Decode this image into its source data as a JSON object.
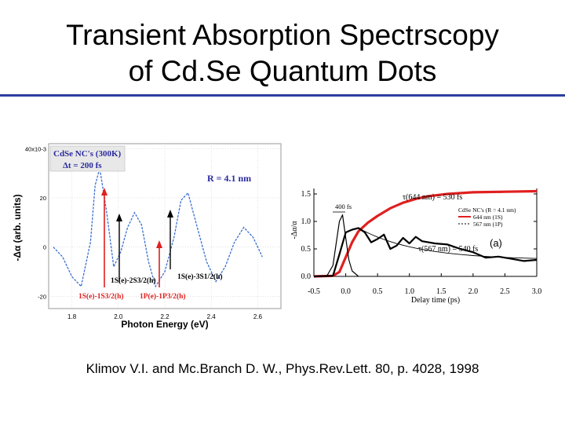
{
  "slide": {
    "title_line1": "Transient Absorption Spectrscopy",
    "title_line2": "of Cd.Se Quantum Dots",
    "citation": "Klimov V.I. and Mc.Branch D. W., Phys.Rev.Lett. 80, p. 4028, 1998",
    "colors": {
      "rule": "#2d3fa0",
      "blue_curve": "#3b6fd0",
      "red": "#e02020",
      "box_text": "#2a2aa0"
    }
  },
  "chart_data": [
    {
      "type": "line",
      "title": "",
      "box_lines": [
        "CdSe NC's (300K)",
        "Δt = 200 fs"
      ],
      "annotation": "R = 4.1 nm",
      "xlabel": "Photon Energy (eV)",
      "ylabel": "-Δα (arb. units)",
      "xlim": [
        1.7,
        2.7
      ],
      "ylim": [
        -25,
        42
      ],
      "x_ticks": [
        "1.8",
        "2.0",
        "2.2",
        "2.4",
        "2.6"
      ],
      "y_ticks": [
        "40x10-3",
        "20",
        "0",
        "-20"
      ],
      "transition_labels": [
        "1S(e)-2S3/2(h)",
        "1S(e)-3S1/2(h)",
        "1S(e)-1S3/2(h)",
        "1P(e)-1P3/2(h)"
      ],
      "series": [
        {
          "x": [
            1.72,
            1.76,
            1.8,
            1.84,
            1.88,
            1.9,
            1.92,
            1.95,
            1.98,
            2.01,
            2.04,
            2.07,
            2.1,
            2.13,
            2.16,
            2.2,
            2.24,
            2.27,
            2.3,
            2.34,
            2.38,
            2.42,
            2.46,
            2.5,
            2.54,
            2.58,
            2.62
          ],
          "y": [
            0,
            -4,
            -12,
            -16,
            2,
            25,
            32,
            14,
            -8,
            -2,
            8,
            14,
            9,
            -6,
            -16,
            -10,
            4,
            19,
            22,
            8,
            -6,
            -14,
            -8,
            2,
            8,
            4,
            -4
          ]
        }
      ]
    },
    {
      "type": "line",
      "title": "",
      "xlabel": "Delay time (ps)",
      "ylabel": "-Δα/α",
      "xlim": [
        -0.5,
        3.0
      ],
      "ylim": [
        0.0,
        1.6
      ],
      "x_ticks": [
        "-0.5",
        "0.0",
        "0.5",
        "1.0",
        "1.5",
        "2.0",
        "2.5",
        "3.0"
      ],
      "y_ticks": [
        "0.0",
        "0.5",
        "1.0",
        "1.5"
      ],
      "annotations": [
        "τ(644 nm) = 530 fs",
        "τ(567 nm) = 540 fs",
        "400 fs",
        "(a)"
      ],
      "legend_title": "CdSe NC's (R = 4.1 nm)",
      "legend": [
        "644 nm (1S)",
        "567 nm (1P)"
      ],
      "series": [
        {
          "name": "644 nm (1S)",
          "color": "#e02020",
          "x": [
            -0.5,
            -0.2,
            -0.1,
            0.0,
            0.1,
            0.2,
            0.35,
            0.5,
            0.7,
            0.9,
            1.1,
            1.3,
            1.6,
            2.0,
            2.5,
            3.0
          ],
          "y": [
            0.0,
            0.01,
            0.08,
            0.35,
            0.62,
            0.82,
            0.98,
            1.1,
            1.24,
            1.34,
            1.41,
            1.46,
            1.5,
            1.53,
            1.54,
            1.55
          ]
        },
        {
          "name": "567 nm (1P)",
          "color": "#000000",
          "x": [
            -0.5,
            -0.2,
            -0.1,
            0.0,
            0.1,
            0.2,
            0.3,
            0.4,
            0.5,
            0.6,
            0.7,
            0.8,
            0.9,
            1.0,
            1.1,
            1.2,
            1.4,
            1.6,
            1.8,
            2.0,
            2.2,
            2.4,
            2.6,
            2.8,
            3.0
          ],
          "y": [
            0.0,
            0.01,
            0.4,
            0.8,
            0.85,
            0.88,
            0.8,
            0.62,
            0.68,
            0.76,
            0.5,
            0.56,
            0.7,
            0.6,
            0.72,
            0.64,
            0.6,
            0.58,
            0.5,
            0.44,
            0.34,
            0.36,
            0.32,
            0.28,
            0.3
          ]
        },
        {
          "name": "pulse",
          "color": "#000000",
          "x": [
            -0.3,
            -0.2,
            -0.15,
            -0.1,
            -0.05,
            0.0,
            0.05,
            0.1,
            0.2
          ],
          "y": [
            0.0,
            0.2,
            0.6,
            1.0,
            1.12,
            0.7,
            0.3,
            0.1,
            0.0
          ]
        }
      ]
    }
  ]
}
